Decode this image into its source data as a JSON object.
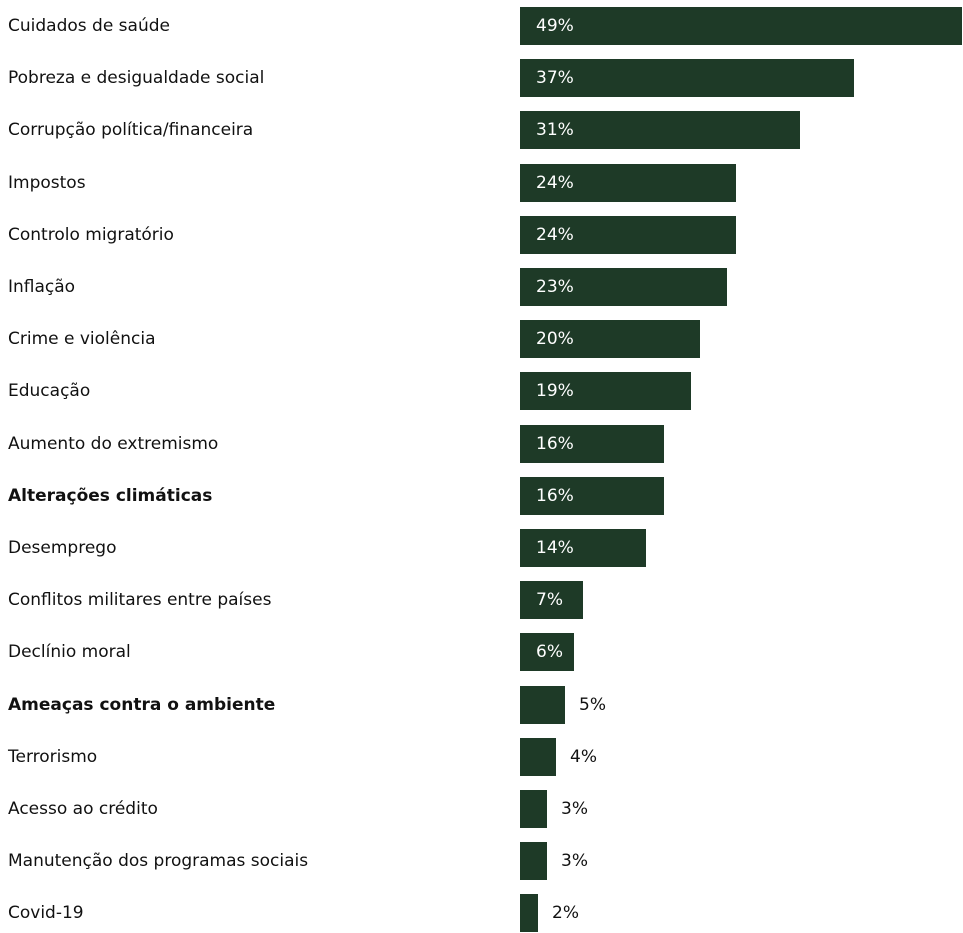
{
  "chart_data": {
    "type": "bar",
    "orientation": "horizontal",
    "unit": "%",
    "bar_color": "#1e3a27",
    "categories": [
      "Cuidados de saúde",
      "Pobreza e desigualdade social",
      "Corrupção política/financeira",
      "Impostos",
      "Controlo migratório",
      "Inflação",
      "Crime e violência",
      "Educação",
      "Aumento do extremismo",
      "Alterações climáticas",
      "Desemprego",
      "Conflitos militares entre países",
      "Declínio moral",
      "Ameaças contra o ambiente",
      "Terrorismo",
      "Acesso ao crédito",
      "Manutenção dos programas sociais",
      "Covid-19"
    ],
    "values": [
      49,
      37,
      31,
      24,
      24,
      23,
      20,
      19,
      16,
      16,
      14,
      7,
      6,
      5,
      4,
      3,
      3,
      2
    ],
    "labels": [
      "49%",
      "37%",
      "31%",
      "24%",
      "24%",
      "23%",
      "20%",
      "19%",
      "16%",
      "16%",
      "14%",
      "7%",
      "6%",
      "5%",
      "4%",
      "3%",
      "3%",
      "2%"
    ],
    "highlighted_categories": [
      "Alterações climáticas",
      "Ameaças contra o ambiente"
    ],
    "xlim": [
      0,
      49
    ]
  }
}
